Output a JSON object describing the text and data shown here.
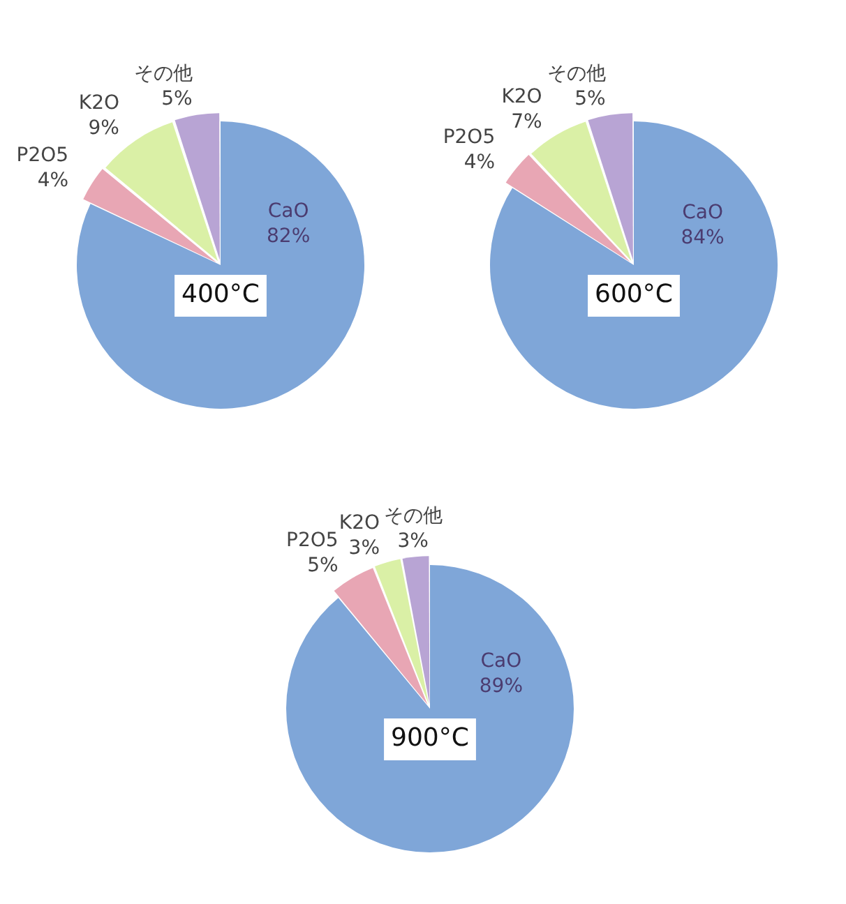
{
  "chart_data": [
    {
      "type": "pie",
      "title": "400°C",
      "categories": [
        "CaO",
        "P2O5",
        "K2O",
        "その他"
      ],
      "values": [
        82,
        4,
        9,
        5
      ],
      "value_labels": [
        "82%",
        "4%",
        "9%",
        "5%"
      ],
      "colors": [
        "#7fa6d8",
        "#e8a6b4",
        "#daf0a6",
        "#b8a4d4"
      ]
    },
    {
      "type": "pie",
      "title": "600°C",
      "categories": [
        "CaO",
        "P2O5",
        "K2O",
        "その他"
      ],
      "values": [
        84,
        4,
        7,
        5
      ],
      "value_labels": [
        "84%",
        "4%",
        "7%",
        "5%"
      ],
      "colors": [
        "#7fa6d8",
        "#e8a6b4",
        "#daf0a6",
        "#b8a4d4"
      ]
    },
    {
      "type": "pie",
      "title": "900°C",
      "categories": [
        "CaO",
        "P2O5",
        "K2O",
        "その他"
      ],
      "values": [
        89,
        5,
        3,
        3
      ],
      "value_labels": [
        "89%",
        "5%",
        "3%",
        "3%"
      ],
      "colors": [
        "#7fa6d8",
        "#e8a6b4",
        "#daf0a6",
        "#b8a4d4"
      ]
    }
  ]
}
